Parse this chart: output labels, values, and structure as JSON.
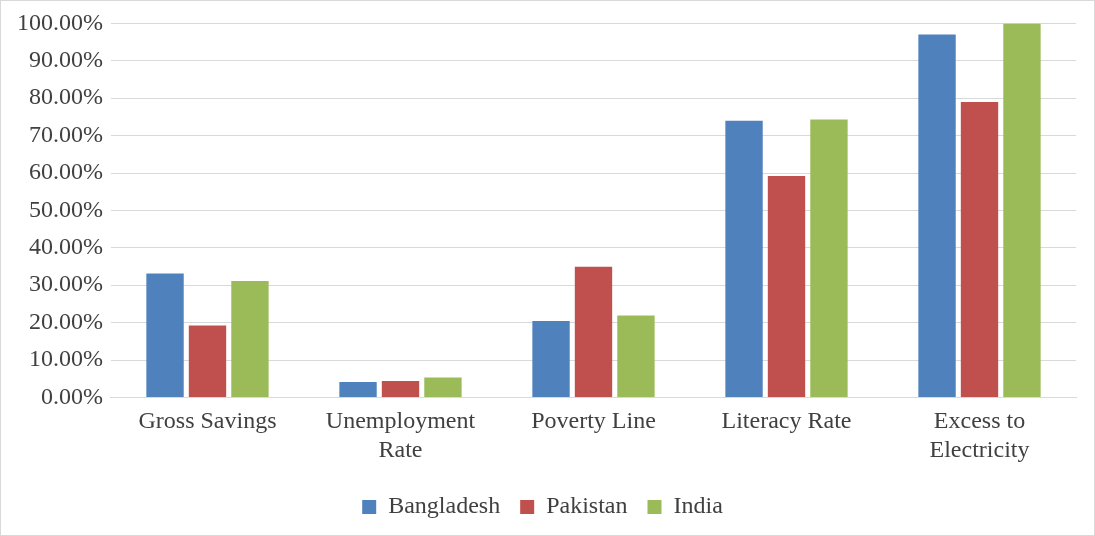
{
  "chart_data": {
    "type": "bar",
    "categories": [
      "Gross Savings",
      "Unemployment Rate",
      "Poverty Line",
      "Literacy Rate",
      "Excess to Electricity"
    ],
    "series": [
      {
        "name": "Bangladesh",
        "color": "#4f81bd",
        "values": [
          33.1,
          4.1,
          20.4,
          74.0,
          97.0
        ]
      },
      {
        "name": "Pakistan",
        "color": "#c0504d",
        "values": [
          19.2,
          4.4,
          34.9,
          59.2,
          79.0
        ]
      },
      {
        "name": "India",
        "color": "#9bbb59",
        "values": [
          31.1,
          5.3,
          21.9,
          74.3,
          100.0
        ]
      }
    ],
    "ylim": [
      0,
      100
    ],
    "yticks": [
      {
        "value": 0,
        "label": "0.00%"
      },
      {
        "value": 10,
        "label": "10.00%"
      },
      {
        "value": 20,
        "label": "20.00%"
      },
      {
        "value": 30,
        "label": "30.00%"
      },
      {
        "value": 40,
        "label": "40.00%"
      },
      {
        "value": 50,
        "label": "50.00%"
      },
      {
        "value": 60,
        "label": "60.00%"
      },
      {
        "value": 70,
        "label": "70.00%"
      },
      {
        "value": 80,
        "label": "80.00%"
      },
      {
        "value": 90,
        "label": "90.00%"
      },
      {
        "value": 100,
        "label": "100.00%"
      }
    ],
    "grid": "y",
    "legend": "bottom"
  }
}
